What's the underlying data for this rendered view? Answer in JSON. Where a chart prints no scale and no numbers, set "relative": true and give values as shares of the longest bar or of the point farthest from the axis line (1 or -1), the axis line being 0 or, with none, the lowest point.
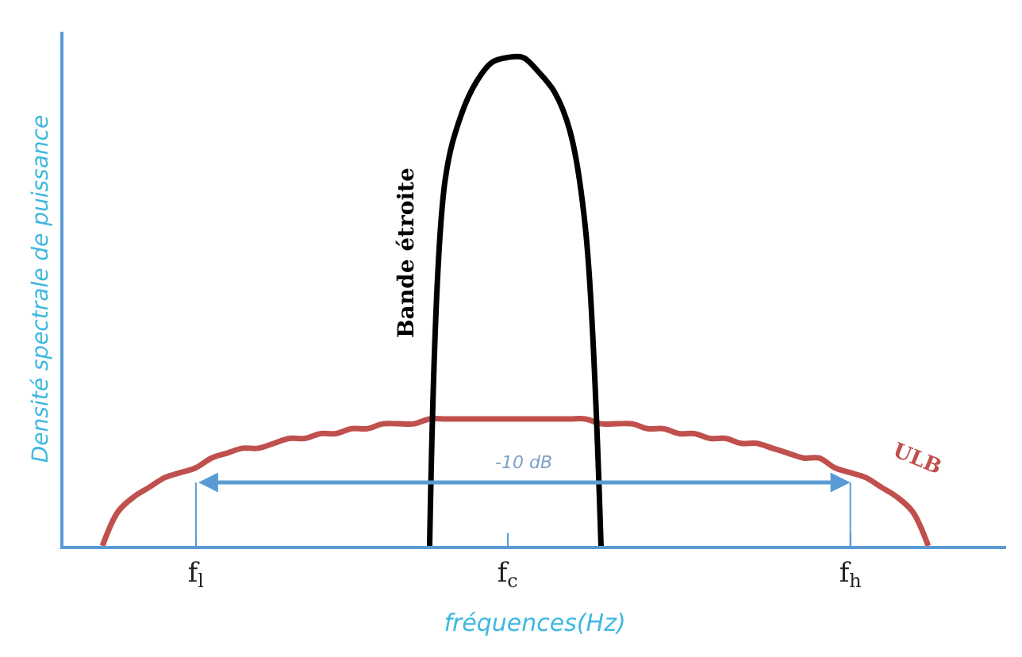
{
  "chart_data": {
    "type": "line",
    "relative": true,
    "xlabel": "fréquences(Hz)",
    "ylabel": "Densité spectrale de puissance",
    "categories": [
      null,
      null,
      null,
      null,
      null,
      null,
      null,
      null,
      "f$_{l}$",
      null,
      null,
      null,
      null,
      null,
      null,
      null,
      null,
      null,
      null,
      null,
      null,
      null,
      null,
      null,
      null,
      null,
      null,
      null,
      "f$_{c}$",
      null,
      null,
      null,
      null,
      null,
      null,
      null,
      null,
      null,
      null,
      null,
      null,
      null,
      null,
      null,
      null,
      null,
      null,
      null,
      null,
      null,
      "f$_{h}$",
      null,
      null,
      null,
      null,
      null,
      null,
      null,
      null
    ],
    "series": [
      {
        "name": "ULB",
        "color": "#c0504d",
        "values": [
          null,
          null,
          0,
          0.07,
          0.1,
          0.12,
          0.14,
          0.15,
          0.16,
          0.18,
          0.19,
          0.2,
          0.2,
          0.21,
          0.22,
          0.22,
          0.23,
          0.23,
          0.24,
          0.24,
          0.25,
          0.25,
          0.25,
          0.26,
          0.26,
          0.26,
          0.26,
          0.26,
          0.26,
          0.26,
          0.26,
          0.26,
          0.26,
          0.26,
          0.25,
          0.25,
          0.25,
          0.24,
          0.24,
          0.23,
          0.23,
          0.22,
          0.22,
          0.21,
          0.21,
          0.2,
          0.19,
          0.18,
          0.18,
          0.16,
          0.15,
          0.14,
          0.12,
          0.1,
          0.07,
          0,
          null,
          null,
          null
        ]
      },
      {
        "name": "Bande étroite",
        "color": "#000000",
        "values": [
          null,
          null,
          null,
          null,
          null,
          null,
          null,
          null,
          null,
          null,
          null,
          null,
          null,
          null,
          null,
          null,
          null,
          null,
          null,
          null,
          null,
          null,
          null,
          0,
          0.75,
          0.88,
          0.95,
          0.99,
          1.0,
          1.0,
          0.97,
          0.93,
          0.85,
          0.65,
          0,
          null,
          null,
          null,
          null,
          null,
          null,
          null,
          null,
          null,
          null,
          null,
          null,
          null,
          null,
          null,
          null,
          null,
          null,
          null,
          null,
          null,
          null,
          null,
          null
        ]
      }
    ],
    "annotations": [
      "-10 dB"
    ],
    "legend": false,
    "marker": "none",
    "line_style": "solid"
  }
}
